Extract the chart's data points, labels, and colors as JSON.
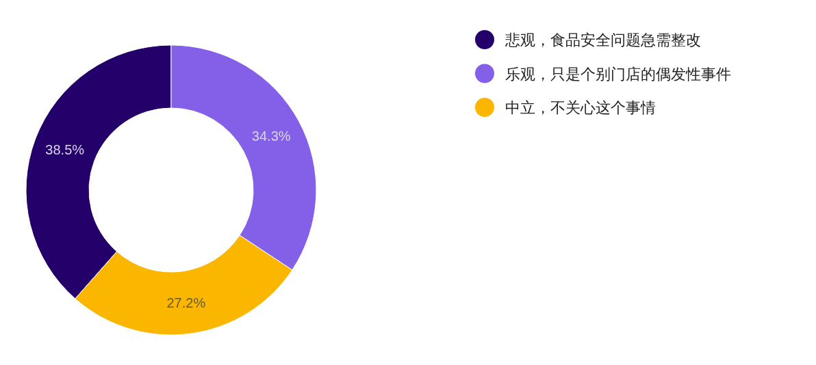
{
  "chart_data": {
    "type": "donut",
    "categories": [
      "悲观，食品安全问题急需整改",
      "乐观，只是个别门店的偶发性事件",
      "中立，不关心这个事情"
    ],
    "values": [
      38.5,
      34.3,
      27.2
    ],
    "colors": [
      "#24006b",
      "#8460e8",
      "#fbb600"
    ],
    "value_labels": [
      "38.5%",
      "34.3%",
      "27.2%"
    ],
    "legend": "right"
  }
}
